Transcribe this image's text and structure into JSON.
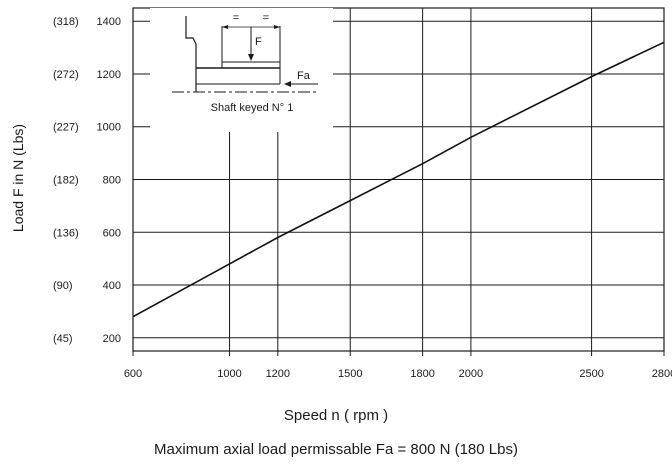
{
  "chart_data": {
    "type": "line",
    "xlabel": "Speed n ( rpm )",
    "ylabel": "Load F in N (Lbs)",
    "caption": "Maximum axial load permissable Fa = 800 N (180 Lbs)",
    "x_ticks": [
      600,
      1000,
      1200,
      1500,
      1800,
      2000,
      2500,
      2800
    ],
    "y_ticks": [
      {
        "value": 200,
        "lbs": "(45)"
      },
      {
        "value": 400,
        "lbs": "(90)"
      },
      {
        "value": 600,
        "lbs": "(136)"
      },
      {
        "value": 800,
        "lbs": "(182)"
      },
      {
        "value": 1000,
        "lbs": "(227)"
      },
      {
        "value": 1200,
        "lbs": "(272)"
      },
      {
        "value": 1400,
        "lbs": "(318)"
      }
    ],
    "xlim": [
      600,
      2800
    ],
    "ylim": [
      150,
      1450
    ],
    "grid": true,
    "series": [
      {
        "points": [
          [
            600,
            280
          ],
          [
            1000,
            480
          ],
          [
            1200,
            580
          ],
          [
            1500,
            720
          ],
          [
            1800,
            860
          ],
          [
            2000,
            960
          ],
          [
            2500,
            1190
          ],
          [
            2800,
            1320
          ]
        ]
      }
    ],
    "inset": {
      "label": "Shaft keyed N° 1",
      "force_label": "F",
      "axial_label": "Fa",
      "equal_marks": [
        "=",
        "="
      ]
    }
  }
}
